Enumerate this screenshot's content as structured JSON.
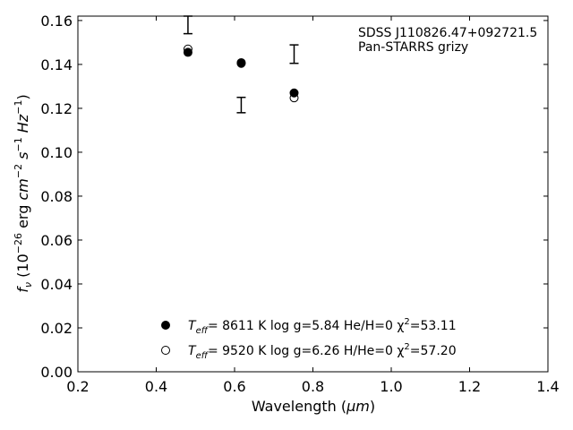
{
  "chart_data": {
    "type": "scatter",
    "xlabel_prefix": "Wavelength (",
    "xlabel_unit": "μm",
    "xlabel_suffix": ")",
    "ylabel": "fν (10⁻²⁶ erg cm⁻² s⁻¹ Hz⁻¹)",
    "xlim": [
      0.2,
      1.4
    ],
    "ylim": [
      0.0,
      0.162
    ],
    "xticks": [
      0.2,
      0.4,
      0.6,
      0.8,
      1.0,
      1.2,
      1.4
    ],
    "xtick_labels": [
      "0.2",
      "0.4",
      "0.6",
      "0.8",
      "1.0",
      "1.2",
      "1.4"
    ],
    "yticks": [
      0.0,
      0.02,
      0.04,
      0.06,
      0.08,
      0.1,
      0.12,
      0.14,
      0.16
    ],
    "ytick_labels": [
      "0.00",
      "0.02",
      "0.04",
      "0.06",
      "0.08",
      "0.10",
      "0.12",
      "0.14",
      "0.16"
    ],
    "annotation": [
      "SDSS J110826.47+092721.5",
      "Pan-STARRS grizy"
    ],
    "observed": [
      {
        "x": 0.481,
        "y": 0.158,
        "err": 0.004
      },
      {
        "x": 0.617,
        "y": 0.1215,
        "err": 0.0035
      },
      {
        "x": 0.752,
        "y": 0.1447,
        "err": 0.0042
      }
    ],
    "series": [
      {
        "marker": "filled",
        "x": [
          0.481,
          0.617,
          0.752
        ],
        "y": [
          0.1455,
          0.1405,
          0.127
        ],
        "label_parts": [
          "T",
          "eff",
          "=  8611 K  log g=5.84  He/H=0  χ",
          "2",
          "=53.11"
        ]
      },
      {
        "marker": "open",
        "x": [
          0.481,
          0.617,
          0.752
        ],
        "y": [
          0.147,
          0.1408,
          0.1248
        ],
        "label_parts": [
          "T",
          "eff",
          "=  9520 K  log g=6.26  H/He=0  χ",
          "2",
          "=57.20"
        ]
      }
    ],
    "ylabel_parts": {
      "f": "f",
      "nu": "ν",
      "pre": " (10",
      "exp1": "−26",
      "mid1": " erg ",
      "cm": "cm",
      "exp2": "−2",
      "s": " s",
      "exp3": "−1",
      "hz": " Hz",
      "exp4": "−1",
      "close": ")"
    }
  }
}
